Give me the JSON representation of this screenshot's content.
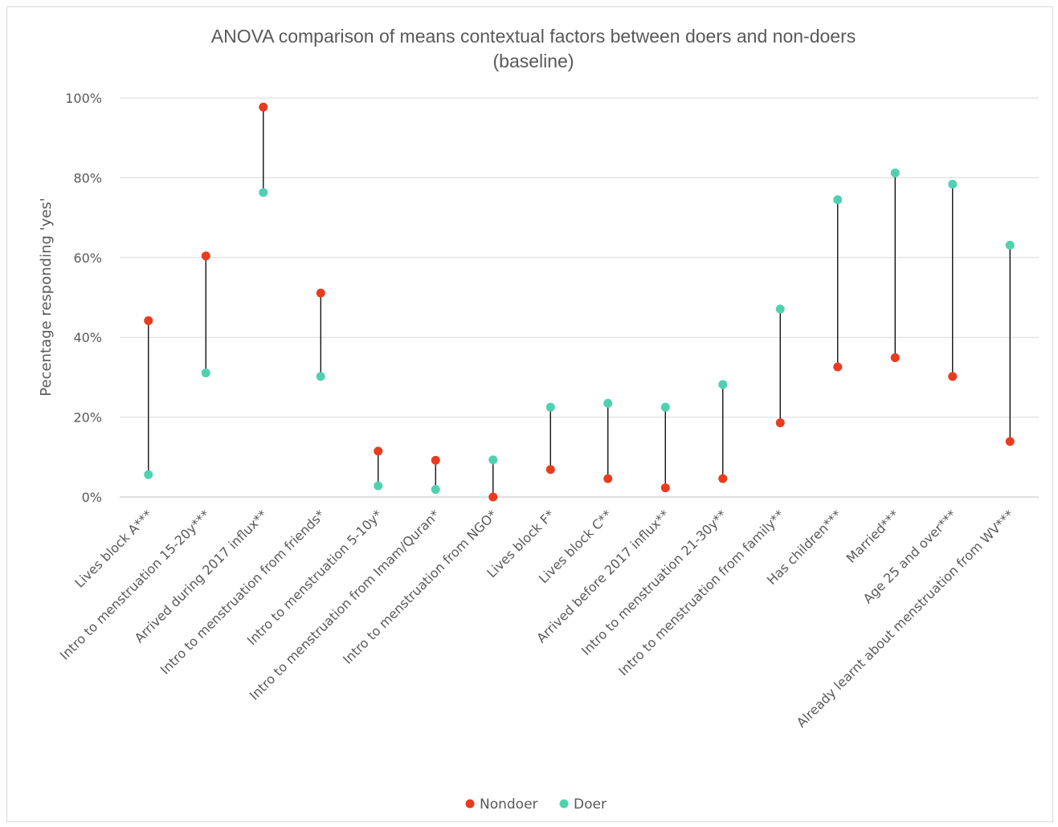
{
  "chart_data": {
    "type": "scatter",
    "title": "ANOVA comparison of means contextual factors between doers and non-doers",
    "subtitle": "(baseline)",
    "ylabel": "Pecentage responding 'yes'",
    "xlabel": "",
    "ylim": [
      0,
      100
    ],
    "yticks": [
      "0%",
      "20%",
      "40%",
      "60%",
      "80%",
      "100%"
    ],
    "grid": true,
    "legend_position": "bottom",
    "categories": [
      "Lives block A***",
      "Intro to menstruation 15-20y***",
      "Arrived during 2017 influx**",
      "Intro to menstruation from friends*",
      "Intro to menstruation 5-10y*",
      "Intro to menstruation from Imam/Quran*",
      "Intro to menstruation from NGO*",
      "Lives block F*",
      "Lives block C**",
      "Arrived before 2017 influx**",
      "Intro to menstruation 21-30y**",
      "Intro to menstruation from family**",
      "Has children***",
      "Married***",
      "Age 25 and over***",
      "Already learnt about menstruation from WV***"
    ],
    "series": [
      {
        "name": "Nondoer",
        "color": "#ea3b1f",
        "values": [
          44.2,
          60.4,
          97.7,
          51.1,
          11.5,
          9.2,
          0,
          6.9,
          4.6,
          2.3,
          4.6,
          18.6,
          32.6,
          34.9,
          30.2,
          13.9
        ]
      },
      {
        "name": "Doer",
        "color": "#4fd1b0",
        "values": [
          5.6,
          31.1,
          76.3,
          30.2,
          2.8,
          1.9,
          9.3,
          22.5,
          23.5,
          22.5,
          28.2,
          47.1,
          74.5,
          81.2,
          78.4,
          63.1
        ]
      }
    ]
  }
}
